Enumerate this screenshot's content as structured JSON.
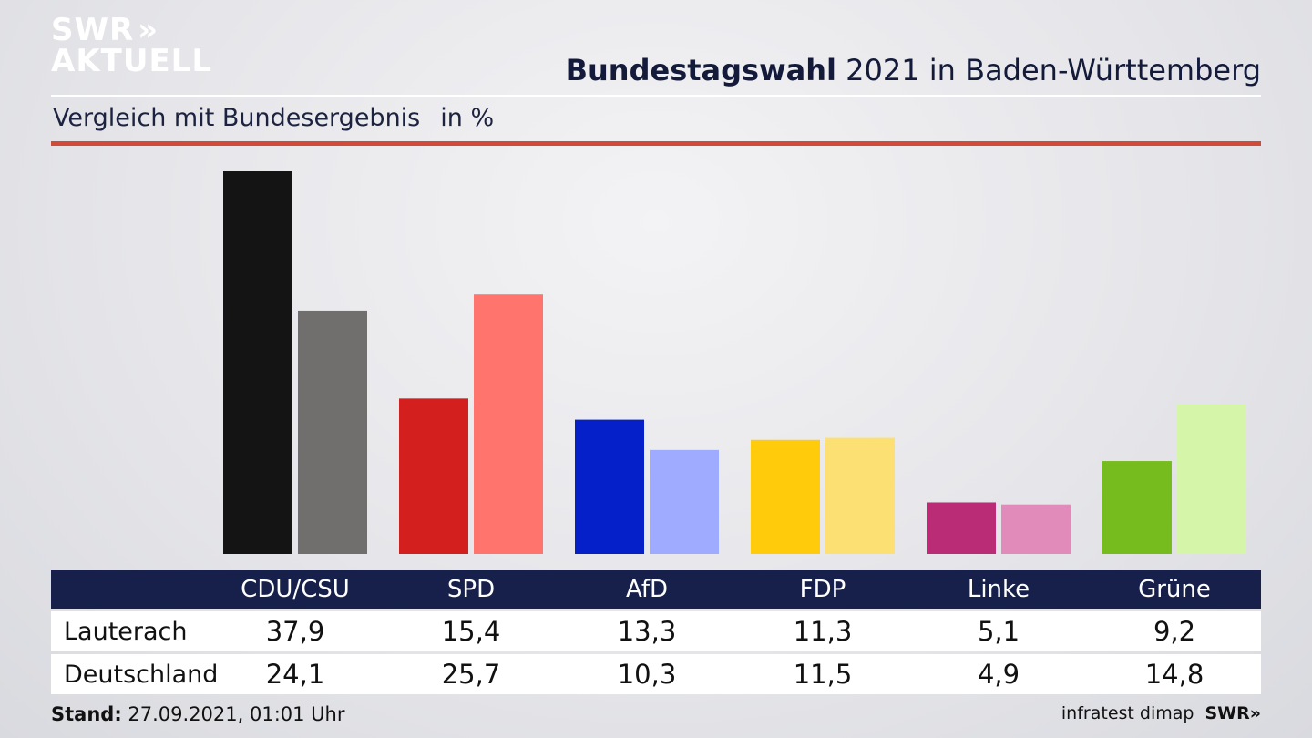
{
  "logo": {
    "line1": "SWR",
    "arrows": "»",
    "line2": "AKTUELL"
  },
  "header": {
    "title_bold": "Bundestagswahl",
    "title_rest": " 2021 in Baden-Württemberg",
    "subtitle": "Vergleich mit Bundesergebnis",
    "unit": "in %"
  },
  "chart_data": {
    "type": "bar",
    "categories": [
      "CDU/CSU",
      "SPD",
      "AfD",
      "FDP",
      "Linke",
      "Grüne"
    ],
    "series": [
      {
        "name": "Lauterach",
        "values": [
          37.9,
          15.4,
          13.3,
          11.3,
          5.1,
          9.2
        ]
      },
      {
        "name": "Deutschland",
        "values": [
          24.1,
          25.7,
          10.3,
          11.5,
          4.9,
          14.8
        ]
      }
    ],
    "value_labels": {
      "Lauterach": [
        "37,9",
        "15,4",
        "13,3",
        "11,3",
        "5,1",
        "9,2"
      ],
      "Deutschland": [
        "24,1",
        "25,7",
        "10,3",
        "11,5",
        "4,9",
        "14,8"
      ]
    },
    "colors": {
      "Lauterach": [
        "#141414",
        "#d41f1f",
        "#0520c8",
        "#ffcb0a",
        "#bb2c76",
        "#77bc1f"
      ],
      "Deutschland": [
        "#706f6d",
        "#ff756d",
        "#9eabff",
        "#fde073",
        "#e08bba",
        "#d5f5a8"
      ]
    },
    "ylim": [
      0,
      37.9
    ],
    "grid": false,
    "xlabel": "",
    "ylabel": ""
  },
  "footer": {
    "stand_label": "Stand:",
    "stand_value": " 27.09.2021, 01:01 Uhr",
    "source": "infratest dimap",
    "brand": "SWR»"
  }
}
